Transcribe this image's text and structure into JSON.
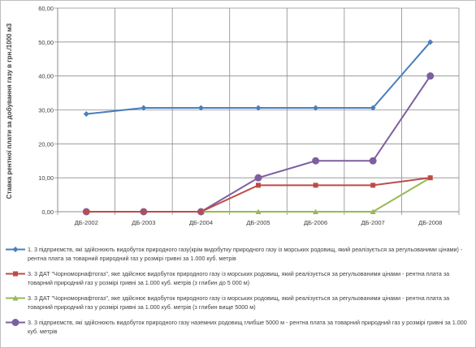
{
  "chart_data": {
    "type": "line",
    "ylabel": "Ставка рентної плати за добування газу в грн./1000 м3",
    "xlabel": "",
    "categories": [
      "ДБ-2002",
      "ДБ-2003",
      "ДБ-2004",
      "ДБ-2005",
      "ДБ-2006",
      "ДБ-2007",
      "ДБ-2008"
    ],
    "y_tick_labels": [
      "0,00",
      "10,00",
      "20,00",
      "30,00",
      "40,00",
      "50,00",
      "60,00"
    ],
    "ylim": [
      0,
      60
    ],
    "grid": true,
    "legend_position": "bottom",
    "series": [
      {
        "name": "1. 3 підприємств, які здійснюють видобуток природного газу(крім видобутку природного газу із морських родовищ, який реалізується за регульованими цінами) - рентна плата за товарний природний газ у розмірі гривні за 1.000 куб. метрів",
        "color": "#4a7ebb",
        "marker": "diamond",
        "values": [
          28.8,
          30.6,
          30.6,
          30.6,
          30.6,
          30.6,
          50.0
        ]
      },
      {
        "name": "3. 3 ДАТ \"Чорноморнафтогаз\", яке здійснює видобуток природного газу із морських родовищ, який реалізується за регульованими цінами - рентна плата за товарний природний газ у розмірі гривні за 1.000 куб. метрів (з глибин до 5 000 м)",
        "color": "#be4b48",
        "marker": "square",
        "values": [
          0,
          0,
          0,
          7.8,
          7.8,
          7.8,
          10.0
        ]
      },
      {
        "name": "3. 3 ДАТ \"Чорноморнафтогаз\", яке здійснює видобуток природного газу із морських родовищ, який реалізується за регульованими цінами - рентна плата за товарний природний газ у розмірі гривні за 1.000 куб. метрів (з глибин вище 5000 м)",
        "color": "#98b954",
        "marker": "triangle",
        "values": [
          0,
          0,
          0,
          0,
          0,
          0,
          10.0
        ]
      },
      {
        "name": "3. 3 підприємств, які здійснюють видобуток природного газу наземних родовищ глибше 5000 м - рентна плата за товарний природний газ у розмірі гривні за 1.000 куб. метрів",
        "color": "#7d5fa0",
        "marker": "circle",
        "values": [
          0,
          0,
          0,
          10.0,
          15.0,
          15.0,
          40.0
        ]
      }
    ]
  }
}
